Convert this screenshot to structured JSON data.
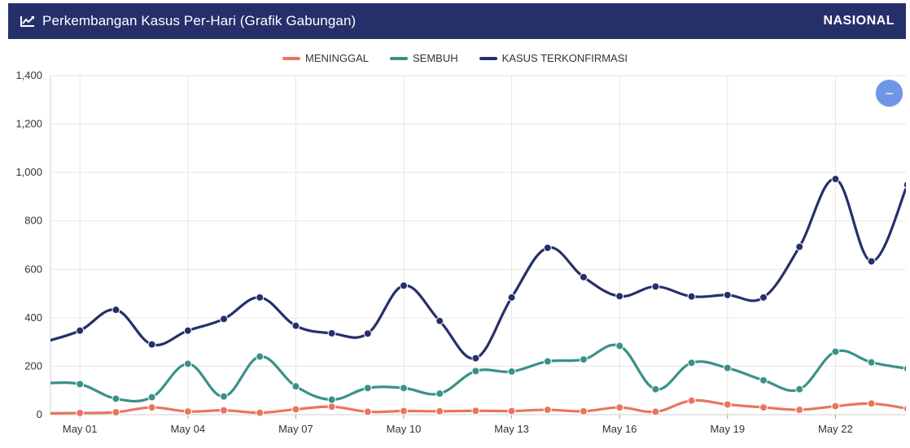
{
  "header": {
    "title": "Perkembangan Kasus Per-Hari (Grafik Gabungan)",
    "region": "NASIONAL",
    "icon": "line-chart-icon"
  },
  "zoom_button": {
    "label": "−",
    "icon": "minus-icon"
  },
  "chart_data": {
    "type": "line",
    "x": [
      "Apr 30",
      "May 01",
      "May 02",
      "May 03",
      "May 04",
      "May 05",
      "May 06",
      "May 07",
      "May 08",
      "May 09",
      "May 10",
      "May 11",
      "May 12",
      "May 13",
      "May 14",
      "May 15",
      "May 16",
      "May 17",
      "May 18",
      "May 19",
      "May 20",
      "May 21",
      "May 22",
      "May 23",
      "May 24"
    ],
    "x_tick_labels": [
      "May 01",
      "May 04",
      "May 07",
      "May 10",
      "May 13",
      "May 16",
      "May 19",
      "May 22"
    ],
    "series": [
      {
        "name": "MENINGGAL",
        "color": "#e8765e",
        "values": [
          5,
          7,
          10,
          30,
          13,
          18,
          8,
          22,
          33,
          12,
          15,
          14,
          16,
          15,
          20,
          14,
          30,
          12,
          58,
          42,
          30,
          20,
          35,
          46,
          25
        ]
      },
      {
        "name": "SEMBUH",
        "color": "#3a9188",
        "values": [
          130,
          126,
          66,
          72,
          210,
          75,
          240,
          117,
          62,
          110,
          110,
          87,
          180,
          178,
          220,
          228,
          284,
          105,
          214,
          193,
          142,
          105,
          260,
          216,
          190
        ]
      },
      {
        "name": "KASUS TERKONFIRMASI",
        "color": "#25306b",
        "values": [
          300,
          347,
          433,
          290,
          347,
          395,
          484,
          367,
          336,
          335,
          533,
          387,
          233,
          484,
          689,
          568,
          489,
          529,
          488,
          494,
          484,
          693,
          973,
          633,
          949
        ]
      }
    ],
    "y_ticks": [
      0,
      200,
      400,
      600,
      800,
      1000,
      1200,
      1400
    ],
    "y_tick_labels": [
      "0",
      "200",
      "400",
      "600",
      "800",
      "1,000",
      "1,200",
      "1,400"
    ],
    "ylim": [
      0,
      1400
    ],
    "grid": true,
    "legend_position": "top-center"
  }
}
